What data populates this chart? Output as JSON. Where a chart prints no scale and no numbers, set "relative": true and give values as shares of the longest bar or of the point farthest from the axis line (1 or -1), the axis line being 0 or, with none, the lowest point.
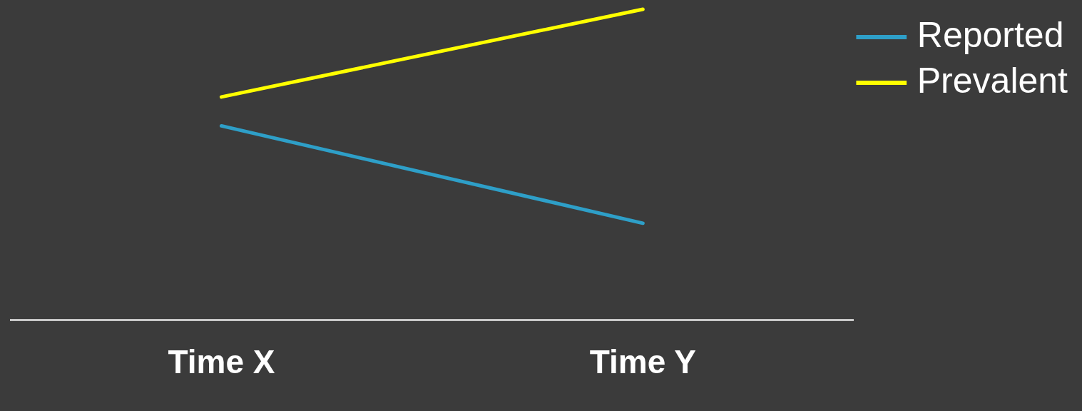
{
  "chart_data": {
    "type": "line",
    "relative": true,
    "categories": [
      "Time X",
      "Time Y"
    ],
    "series": [
      {
        "name": "Reported",
        "color": "#2e9fc8",
        "values": [
          0.625,
          0.312
        ]
      },
      {
        "name": "Prevalent",
        "color": "#ffff00",
        "values": [
          0.718,
          1
        ]
      }
    ],
    "legend": "right",
    "grid": false,
    "marker": "none",
    "line_style": "solid"
  }
}
